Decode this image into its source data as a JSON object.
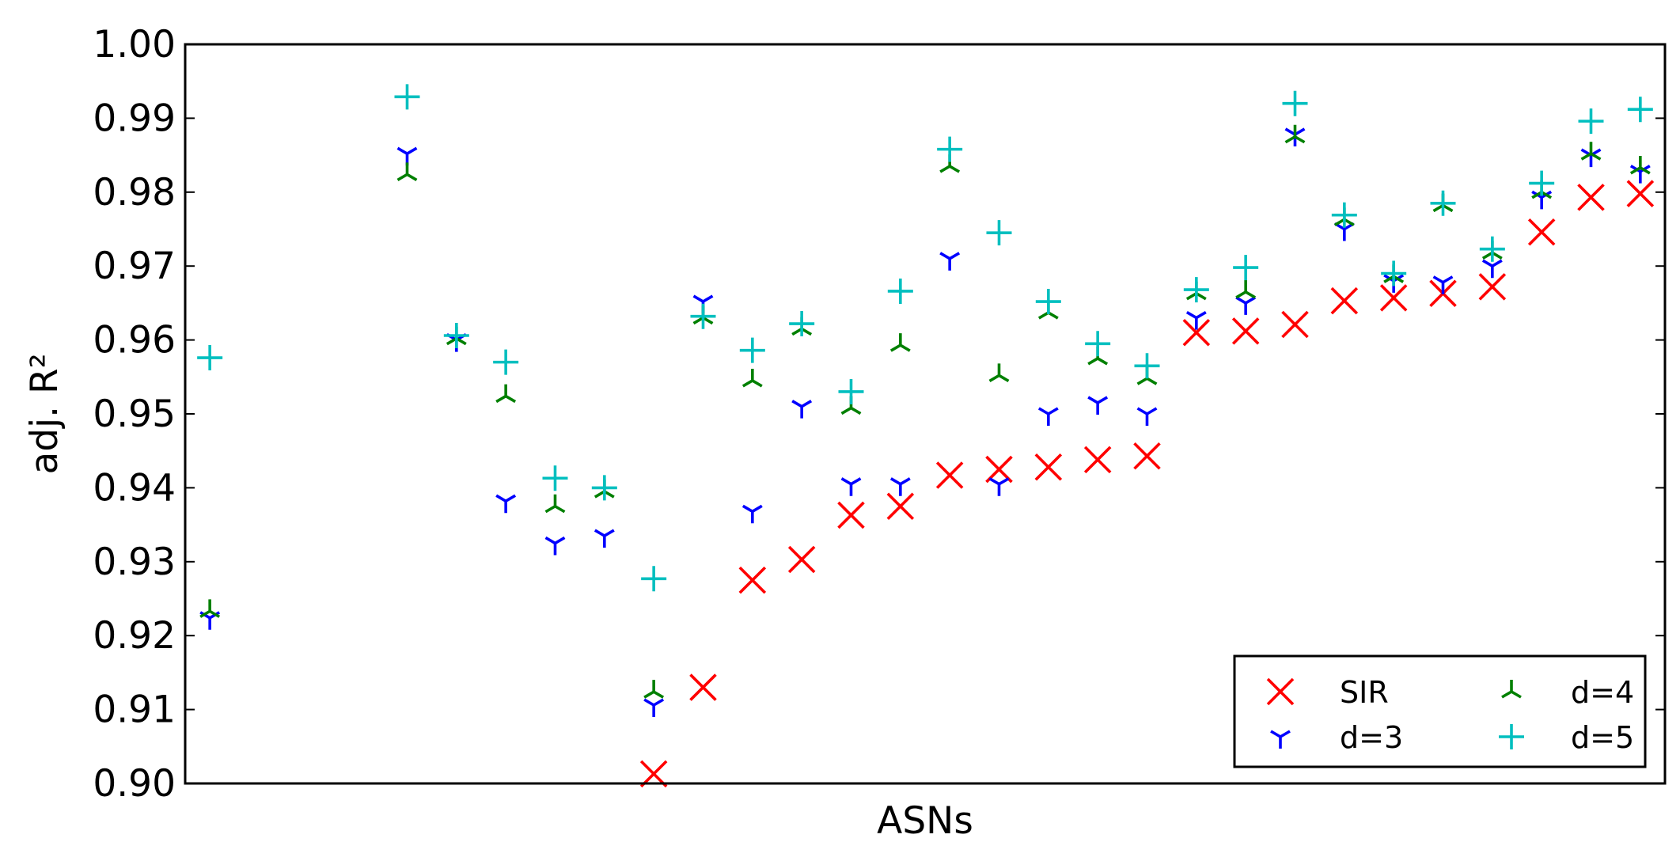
{
  "chart_data": {
    "type": "scatter",
    "title": "",
    "xlabel": "ASNs",
    "ylabel": "adj. R²",
    "ylim": [
      0.9,
      1.0
    ],
    "yticks": [
      "0.90",
      "0.91",
      "0.92",
      "0.93",
      "0.94",
      "0.95",
      "0.96",
      "0.97",
      "0.98",
      "0.99",
      "1.00"
    ],
    "grid": false,
    "legend_position": "lower-right",
    "legend_columns": 2,
    "x": [
      1,
      2,
      3,
      4,
      5,
      6,
      7,
      8,
      9,
      10,
      11,
      12,
      13,
      14,
      15,
      16,
      17,
      18,
      19,
      20,
      21,
      22,
      23,
      24,
      25,
      26,
      27,
      28,
      29,
      30
    ],
    "xlim": [
      0.5,
      30.5
    ],
    "series": [
      {
        "name": "SIR",
        "marker": "x",
        "color": "#ff0000",
        "values": [
          null,
          null,
          null,
          null,
          null,
          null,
          null,
          null,
          null,
          0.9013,
          0.913,
          0.9275,
          0.9303,
          0.9363,
          0.9375,
          0.9417,
          0.9425,
          0.9428,
          0.9438,
          0.9443,
          0.961,
          0.9612,
          0.9621,
          0.9653,
          0.9657,
          0.9663,
          0.9672,
          0.9746,
          0.9793,
          0.9798
        ]
      },
      {
        "name": "d=3",
        "marker": "tri_down",
        "color": "#0000ff",
        "values": [
          0.9224,
          null,
          null,
          null,
          0.9852,
          0.96,
          0.9382,
          0.9325,
          0.9335,
          0.9106,
          0.9652,
          0.9368,
          0.951,
          0.9405,
          0.9405,
          0.971,
          0.9405,
          0.95,
          0.9515,
          0.95,
          0.963,
          0.965,
          0.9878,
          0.975,
          0.968,
          0.9678,
          0.97,
          0.9793,
          0.985,
          0.9828
        ]
      },
      {
        "name": "d=4",
        "marker": "tri_up",
        "color": "#008000",
        "values": [
          0.9233,
          null,
          null,
          null,
          0.9824,
          0.9602,
          0.9524,
          0.9375,
          0.9395,
          0.9124,
          0.963,
          0.9545,
          0.9615,
          0.9508,
          0.9593,
          0.9835,
          0.9552,
          0.9637,
          0.9575,
          0.9548,
          0.9663,
          0.9665,
          0.9875,
          0.9763,
          0.9686,
          0.9782,
          0.9718,
          0.98,
          0.9852,
          0.9833
        ]
      },
      {
        "name": "d=5",
        "marker": "plus",
        "color": "#00bfbf",
        "values": [
          0.9576,
          null,
          null,
          null,
          0.9929,
          0.9606,
          0.957,
          0.9413,
          0.94,
          0.9277,
          0.9632,
          0.9586,
          0.9622,
          0.953,
          0.9666,
          0.9858,
          0.9745,
          0.9652,
          0.9595,
          0.9565,
          0.9668,
          0.9698,
          0.992,
          0.9769,
          0.969,
          0.9785,
          0.9723,
          0.9812,
          0.9896,
          0.9912
        ]
      }
    ]
  }
}
